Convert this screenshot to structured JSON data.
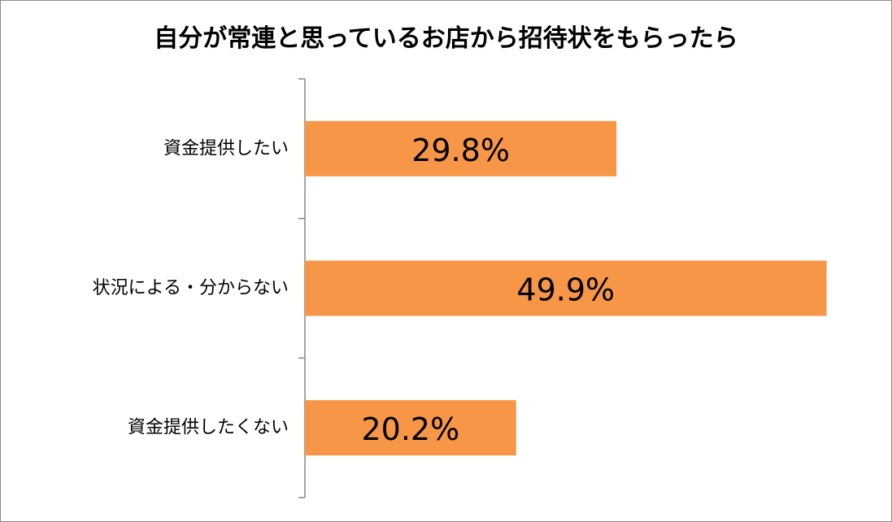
{
  "chart_data": {
    "type": "bar",
    "orientation": "horizontal",
    "title": "自分が常連と思っているお店から招待状をもらったら",
    "categories": [
      "資金提供したい",
      "状況による・分からない",
      "資金提供したくない"
    ],
    "values": [
      29.8,
      49.9,
      20.2
    ],
    "data_labels": [
      "29.8%",
      "49.9%",
      "20.2%"
    ],
    "xlim": [
      0,
      52.5
    ],
    "bar_color": "#F79646",
    "grid": false,
    "legend": "none"
  }
}
